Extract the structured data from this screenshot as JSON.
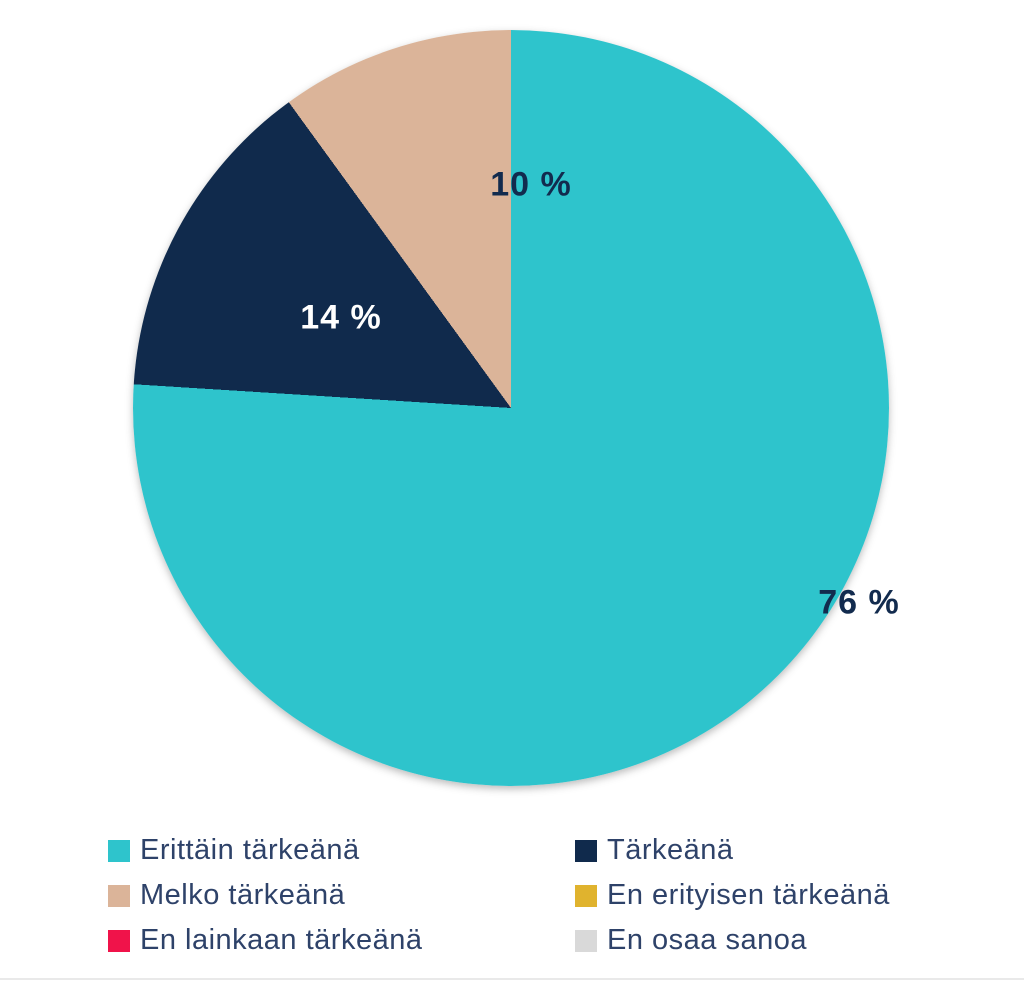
{
  "background_color": "#ffffff",
  "legend_text_color": "#2e4269",
  "chart_data": {
    "type": "pie",
    "title": "",
    "start_angle_deg": 0,
    "direction": "clockwise",
    "legend_position": "bottom",
    "legend_columns": 2,
    "slices": [
      {
        "label": "Erittäin tärkeänä",
        "value": 76,
        "color": "#2ec4cc",
        "pct_label": "76 %",
        "pct_label_color": "#122b4e"
      },
      {
        "label": "Tärkeänä",
        "value": 14,
        "color": "#102a4c",
        "pct_label": "14 %",
        "pct_label_color": "#ffffff"
      },
      {
        "label": "Melko tärkeänä",
        "value": 10,
        "color": "#dbb499",
        "pct_label": "10 %",
        "pct_label_color": "#122b4e"
      },
      {
        "label": "En erityisen tärkeänä",
        "value": 0,
        "color": "#e0b32e",
        "pct_label": "",
        "pct_label_color": ""
      },
      {
        "label": "En lainkaan tärkeänä",
        "value": 0,
        "color": "#f0134a",
        "pct_label": "",
        "pct_label_color": ""
      },
      {
        "label": "En osaa sanoa",
        "value": 0,
        "color": "#d9d9d9",
        "pct_label": "",
        "pct_label_color": ""
      }
    ],
    "legend_order": [
      0,
      1,
      2,
      3,
      4,
      5
    ]
  }
}
